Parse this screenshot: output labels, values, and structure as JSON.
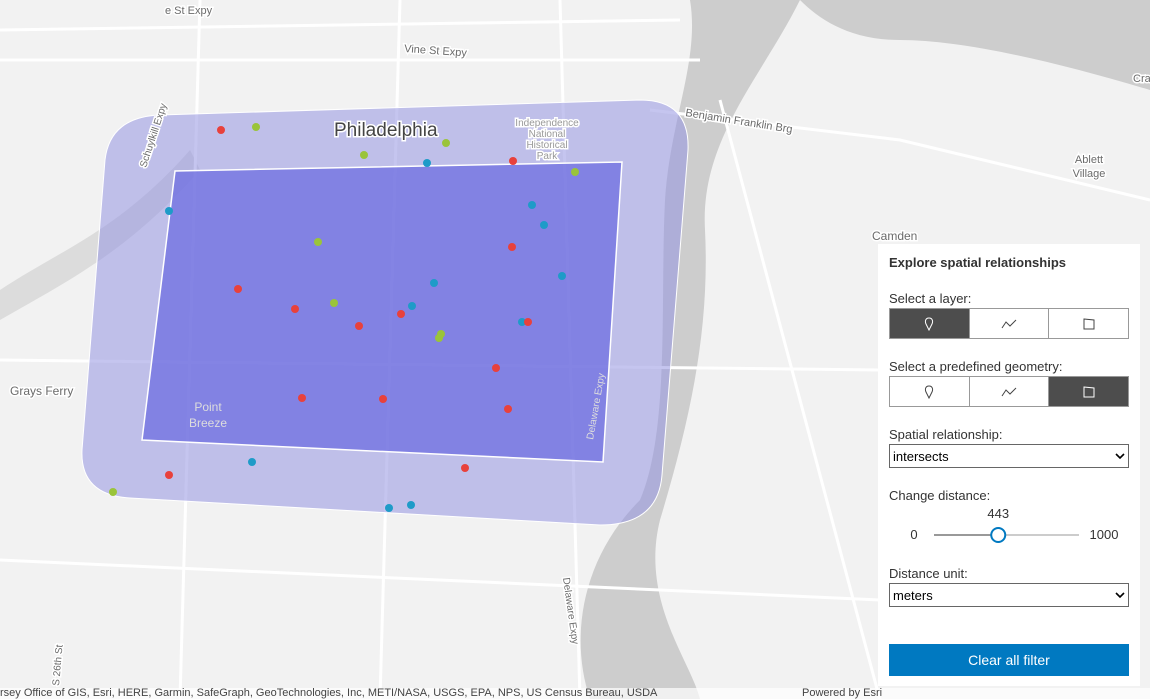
{
  "map": {
    "labels": [
      "e St Expy",
      "Vine St Expy",
      "Benjamin Franklin Brg",
      "Philadelphia",
      "Independence",
      "National",
      "Historical",
      "Park",
      "Schuylkill Expy",
      "Ablett",
      "Village",
      "Camden",
      "Grays Ferry",
      "Point",
      "Breeze",
      "Delaware Expy",
      "Delaware Expy",
      "S 26th St",
      "Cra"
    ]
  },
  "panel": {
    "title": "Explore spatial relationships",
    "layer_label": "Select a layer:",
    "geometry_label": "Select a predefined geometry:",
    "relationship_label": "Spatial relationship:",
    "relationship": "intersects",
    "distance_label": "Change distance:",
    "slider": {
      "min": 0,
      "max": 1000,
      "value": 443
    },
    "unit_label": "Distance unit:",
    "unit": "meters",
    "button": "Clear all filter"
  },
  "attribution": {
    "sources": "rsey Office of GIS, Esri, HERE, Garmin, SafeGraph, GeoTechnologies, Inc, METI/NASA, USGS, EPA, NPS, US Census Bureau, USDA",
    "powered": "Powered by Esri"
  }
}
